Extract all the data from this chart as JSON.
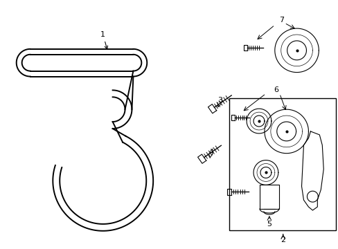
{
  "bg_color": "#ffffff",
  "line_color": "#000000",
  "fig_width": 4.89,
  "fig_height": 3.6,
  "dpi": 100,
  "belt_lw": 1.4,
  "comp_lw": 0.8,
  "label_fs": 8
}
